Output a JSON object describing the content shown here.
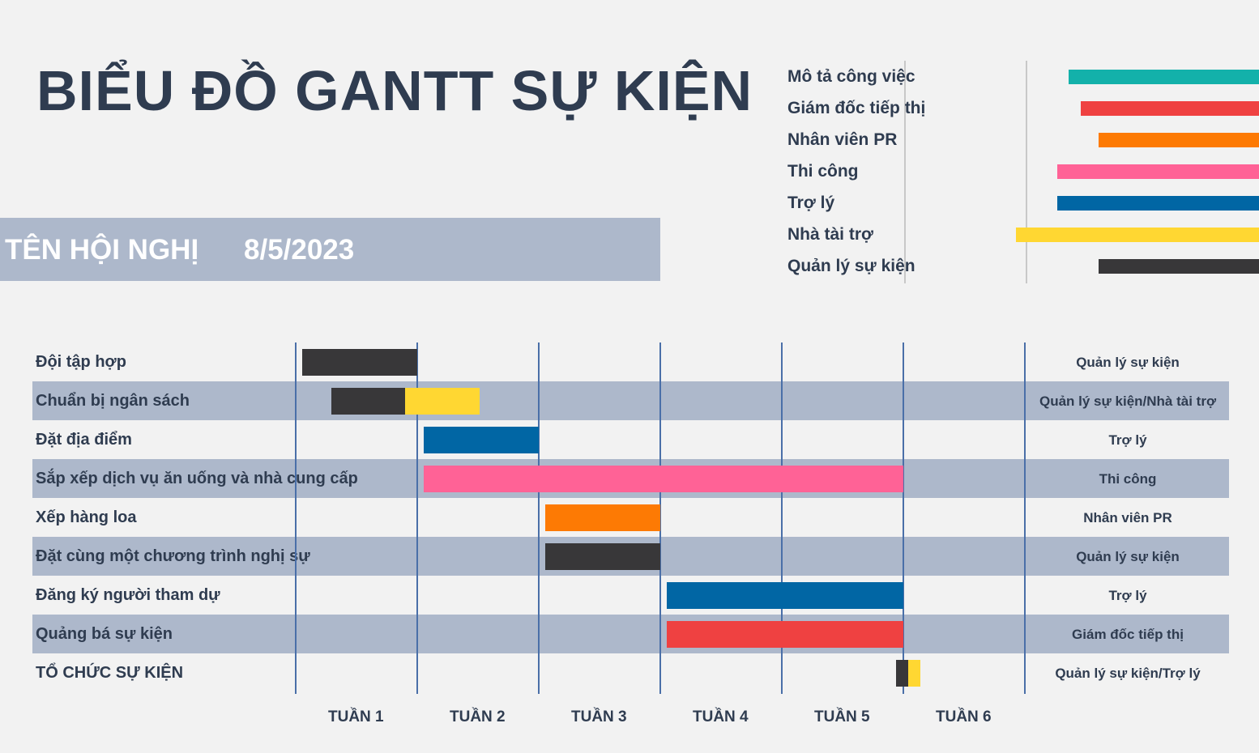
{
  "title": "BIỂU ĐỒ GANTT SỰ KIỆN",
  "banner": {
    "conference": "TÊN HỘI NGHỊ",
    "date": "8/5/2023"
  },
  "legend": [
    {
      "label": "Mô tả công việc",
      "color": "#13b1aa",
      "start": 1.35,
      "end": 3.35
    },
    {
      "label": "Giám đốc tiếp thị",
      "color": "#ef4141",
      "start": 1.45,
      "end": 3.35
    },
    {
      "label": "Nhân viên PR",
      "color": "#fd7a04",
      "start": 1.6,
      "end": 3.35
    },
    {
      "label": "Thi công",
      "color": "#ff6296",
      "start": 1.26,
      "end": 3.35
    },
    {
      "label": "Trợ lý",
      "color": "#0166a4",
      "start": 1.26,
      "end": 3.35
    },
    {
      "label": "Nhà tài trợ",
      "color": "#ffd732",
      "start": 0.92,
      "end": 3.35
    },
    {
      "label": "Quản lý sự kiện",
      "color": "#383739",
      "start": 1.6,
      "end": 3.35
    }
  ],
  "chart_data": {
    "type": "bar",
    "xlabel": "",
    "ylabel": "",
    "x_unit": "weeks",
    "xlim": [
      0,
      6
    ],
    "weeks": [
      "TUẦN 1",
      "TUẦN 2",
      "TUẦN 3",
      "TUẦN 4",
      "TUẦN 5",
      "TUẦN 6"
    ],
    "tasks": [
      {
        "name": "Đội tập hợp",
        "owner": "Quản lý sự kiện",
        "segments": [
          {
            "start": 0.05,
            "end": 1.0,
            "color": "#383739"
          }
        ]
      },
      {
        "name": "Chuẩn bị ngân sách",
        "owner": "Quản lý sự kiện/Nhà tài trợ",
        "segments": [
          {
            "start": 0.29,
            "end": 0.9,
            "color": "#383739"
          },
          {
            "start": 0.9,
            "end": 1.51,
            "color": "#ffd732"
          }
        ]
      },
      {
        "name": "Đặt địa điểm",
        "owner": "Trợ lý",
        "segments": [
          {
            "start": 1.05,
            "end": 2.0,
            "color": "#0166a4"
          }
        ]
      },
      {
        "name": "Sắp xếp dịch vụ ăn uống và nhà cung cấp",
        "owner": "Thi công",
        "segments": [
          {
            "start": 1.05,
            "end": 5.0,
            "color": "#ff6296"
          }
        ]
      },
      {
        "name": "Xếp hàng loa",
        "owner": "Nhân viên PR",
        "segments": [
          {
            "start": 2.05,
            "end": 3.0,
            "color": "#fd7a04"
          }
        ]
      },
      {
        "name": "Đặt cùng một chương trình nghị sự",
        "owner": "Quản lý sự kiện",
        "segments": [
          {
            "start": 2.05,
            "end": 3.0,
            "color": "#383739"
          }
        ]
      },
      {
        "name": "Đăng ký người tham dự",
        "owner": "Trợ lý",
        "segments": [
          {
            "start": 3.05,
            "end": 5.0,
            "color": "#0166a4"
          }
        ]
      },
      {
        "name": "Quảng bá sự kiện",
        "owner": "Giám đốc tiếp thị",
        "segments": [
          {
            "start": 3.05,
            "end": 5.0,
            "color": "#ef4141"
          }
        ]
      },
      {
        "name": "TỔ CHỨC SỰ KIỆN",
        "owner": "Quản lý sự kiện/Trợ lý",
        "segments": [
          {
            "start": 4.94,
            "end": 5.04,
            "color": "#383739"
          },
          {
            "start": 5.04,
            "end": 5.14,
            "color": "#ffd732"
          }
        ]
      }
    ]
  }
}
